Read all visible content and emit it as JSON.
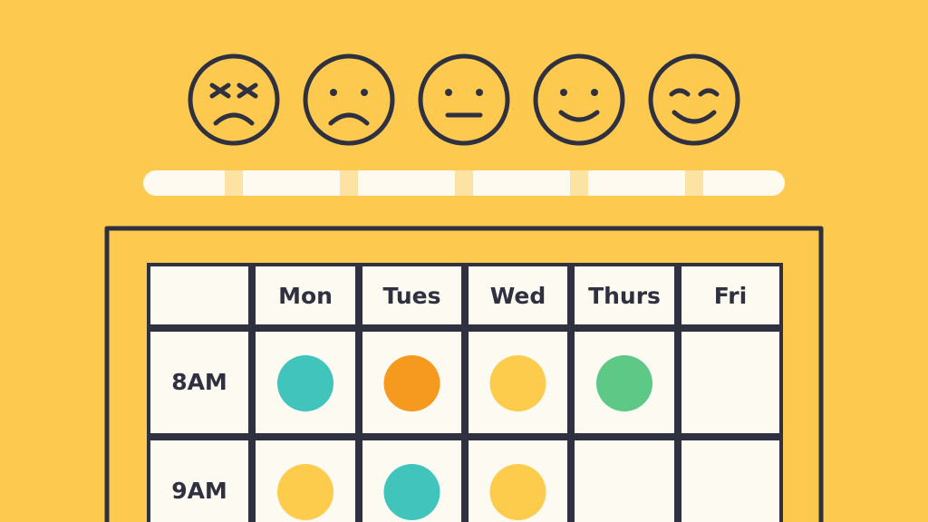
{
  "table": {
    "header": [
      "Mon",
      "Tues",
      "Wed",
      "Thurs",
      "Fri"
    ],
    "rows": [
      {
        "label": "8AM",
        "dots": [
          "#41c4bc",
          "#f5991f",
          "#fdcc4c",
          "#5ec887",
          null
        ]
      },
      {
        "label": "9AM",
        "dots": [
          "#fdcc4c",
          "#41c4bc",
          "#fdcc4c",
          null,
          null
        ]
      }
    ]
  }
}
